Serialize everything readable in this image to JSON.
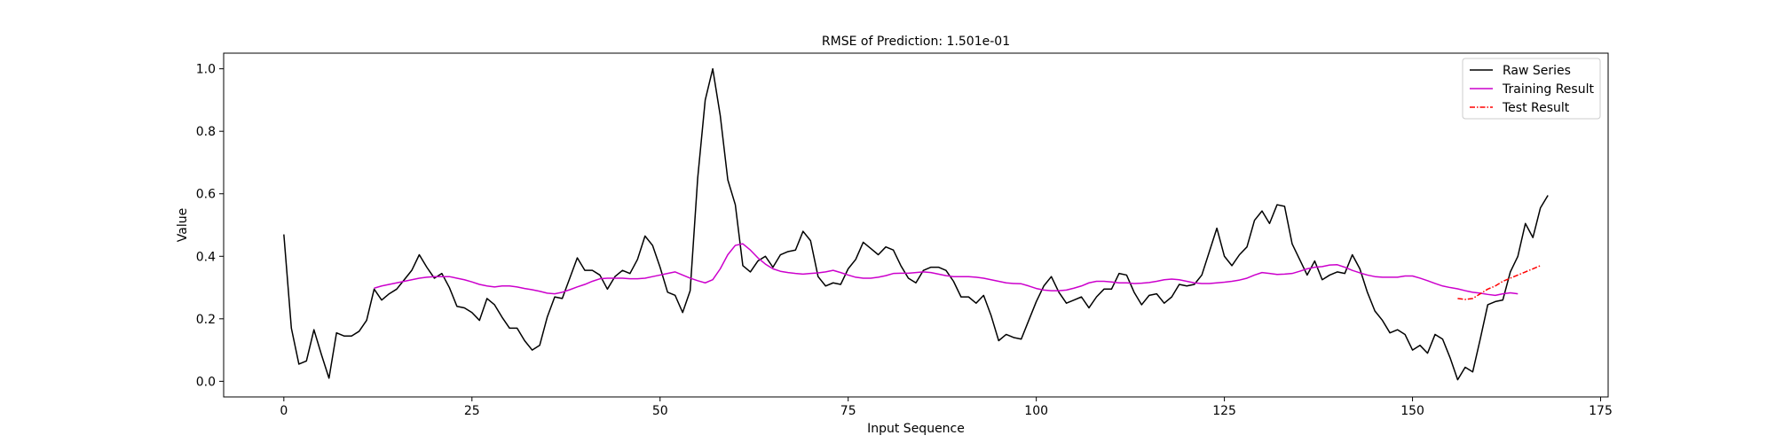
{
  "chart_data": {
    "type": "line",
    "title": "RMSE of Prediction: 1.501e-01",
    "xlabel": "Input Sequence",
    "ylabel": "Value",
    "xlim": [
      -8,
      176
    ],
    "ylim": [
      -0.05,
      1.05
    ],
    "xticks": [
      0,
      25,
      50,
      75,
      100,
      125,
      150,
      175
    ],
    "yticks": [
      0.0,
      0.2,
      0.4,
      0.6,
      0.8,
      1.0
    ],
    "xtick_labels": [
      "0",
      "25",
      "50",
      "75",
      "100",
      "125",
      "150",
      "175"
    ],
    "ytick_labels": [
      "0.0",
      "0.2",
      "0.4",
      "0.6",
      "0.8",
      "1.0"
    ],
    "grid": false,
    "legend_position": "top-right",
    "series": [
      {
        "name": "Raw Series",
        "color": "#000000",
        "style": "solid",
        "x_start": 0,
        "values": [
          0.47,
          0.17,
          0.055,
          0.065,
          0.165,
          0.085,
          0.01,
          0.155,
          0.145,
          0.145,
          0.16,
          0.195,
          0.295,
          0.26,
          0.28,
          0.295,
          0.325,
          0.355,
          0.405,
          0.365,
          0.33,
          0.345,
          0.3,
          0.24,
          0.235,
          0.22,
          0.195,
          0.265,
          0.245,
          0.205,
          0.17,
          0.17,
          0.13,
          0.1,
          0.115,
          0.205,
          0.27,
          0.265,
          0.33,
          0.395,
          0.355,
          0.355,
          0.34,
          0.295,
          0.335,
          0.355,
          0.345,
          0.39,
          0.465,
          0.435,
          0.365,
          0.285,
          0.275,
          0.22,
          0.29,
          0.65,
          0.9,
          1.0,
          0.85,
          0.645,
          0.565,
          0.37,
          0.35,
          0.385,
          0.4,
          0.365,
          0.405,
          0.415,
          0.42,
          0.48,
          0.45,
          0.335,
          0.305,
          0.315,
          0.31,
          0.36,
          0.39,
          0.445,
          0.425,
          0.405,
          0.43,
          0.42,
          0.37,
          0.33,
          0.315,
          0.355,
          0.365,
          0.365,
          0.355,
          0.32,
          0.27,
          0.27,
          0.25,
          0.275,
          0.21,
          0.13,
          0.15,
          0.14,
          0.135,
          0.195,
          0.255,
          0.305,
          0.335,
          0.285,
          0.25,
          0.26,
          0.27,
          0.235,
          0.27,
          0.295,
          0.295,
          0.345,
          0.34,
          0.285,
          0.245,
          0.275,
          0.28,
          0.25,
          0.27,
          0.31,
          0.305,
          0.31,
          0.34,
          0.415,
          0.49,
          0.4,
          0.37,
          0.405,
          0.43,
          0.515,
          0.545,
          0.505,
          0.565,
          0.56,
          0.44,
          0.39,
          0.34,
          0.385,
          0.325,
          0.34,
          0.35,
          0.345,
          0.405,
          0.36,
          0.285,
          0.225,
          0.195,
          0.155,
          0.165,
          0.15,
          0.1,
          0.115,
          0.09,
          0.15,
          0.135,
          0.075,
          0.005,
          0.045,
          0.03,
          0.135,
          0.245,
          0.255,
          0.26,
          0.35,
          0.4,
          0.505,
          0.46,
          0.555,
          0.595
        ]
      },
      {
        "name": "Training Result",
        "color": "#cc00cc",
        "style": "solid",
        "x_start": 12,
        "values": [
          0.298,
          0.305,
          0.31,
          0.315,
          0.32,
          0.325,
          0.33,
          0.333,
          0.335,
          0.335,
          0.335,
          0.33,
          0.325,
          0.318,
          0.31,
          0.305,
          0.302,
          0.305,
          0.305,
          0.302,
          0.297,
          0.293,
          0.288,
          0.282,
          0.28,
          0.285,
          0.293,
          0.302,
          0.31,
          0.32,
          0.328,
          0.33,
          0.33,
          0.33,
          0.328,
          0.328,
          0.33,
          0.335,
          0.34,
          0.345,
          0.35,
          0.34,
          0.33,
          0.322,
          0.315,
          0.325,
          0.36,
          0.405,
          0.435,
          0.44,
          0.42,
          0.395,
          0.375,
          0.36,
          0.352,
          0.348,
          0.345,
          0.343,
          0.345,
          0.347,
          0.35,
          0.355,
          0.348,
          0.34,
          0.333,
          0.33,
          0.33,
          0.333,
          0.338,
          0.345,
          0.346,
          0.346,
          0.348,
          0.35,
          0.348,
          0.343,
          0.338,
          0.335,
          0.335,
          0.335,
          0.333,
          0.33,
          0.325,
          0.32,
          0.315,
          0.313,
          0.312,
          0.305,
          0.297,
          0.292,
          0.29,
          0.29,
          0.292,
          0.298,
          0.305,
          0.315,
          0.32,
          0.32,
          0.318,
          0.315,
          0.315,
          0.313,
          0.314,
          0.316,
          0.32,
          0.325,
          0.327,
          0.325,
          0.32,
          0.315,
          0.313,
          0.313,
          0.315,
          0.317,
          0.32,
          0.324,
          0.33,
          0.34,
          0.348,
          0.345,
          0.342,
          0.343,
          0.345,
          0.352,
          0.36,
          0.365,
          0.367,
          0.372,
          0.373,
          0.365,
          0.355,
          0.347,
          0.34,
          0.335,
          0.333,
          0.333,
          0.333,
          0.337,
          0.337,
          0.33,
          0.322,
          0.313,
          0.305,
          0.3,
          0.296,
          0.29,
          0.285,
          0.282,
          0.278,
          0.275,
          0.28,
          0.283,
          0.28
        ]
      },
      {
        "name": "Test Result",
        "color": "#ff0000",
        "style": "dashdot",
        "x_start": 156,
        "values": [
          0.265,
          0.262,
          0.265,
          0.28,
          0.295,
          0.305,
          0.32,
          0.33,
          0.34,
          0.35,
          0.36,
          0.37
        ]
      }
    ]
  }
}
